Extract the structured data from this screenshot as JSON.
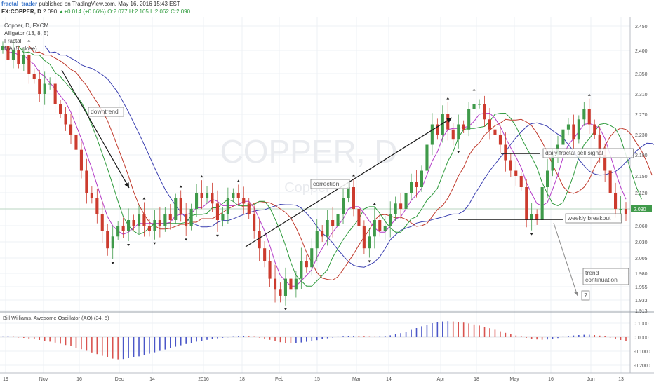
{
  "header": {
    "author": "fractal_trader",
    "published": "published on TradingView.com, May 16, 2016 15:43 EST",
    "symbol": "FX:COPPER, D",
    "last": "2.090",
    "change": "▲+0.014 (+0.66%)",
    "open": "O:2.077",
    "high": "H:2.105",
    "low": "L:2.062",
    "close": "C:2.090"
  },
  "indicators": {
    "series": "Copper, D, FXCM",
    "alligator": "Alligator (13, 8, 5)",
    "fractal": "Fractal",
    "ma": "MA (5, close)"
  },
  "watermark": {
    "main": "COPPER, D",
    "sub": "Copper"
  },
  "colors": {
    "up": "#3f9a4a",
    "down": "#cc3b2e",
    "jaw": "#3a3fb0",
    "teeth": "#c0392b",
    "lips": "#2e9a3c",
    "ma": "#b43cc8",
    "ao_up": "#4a56c8",
    "ao_down": "#d9534f",
    "price_label": "#3f9a4a",
    "annotation": "#666666"
  },
  "chart_data": [
    {
      "type": "candlestick",
      "title": "",
      "x_ticks": [
        "19",
        "Nov",
        "16",
        "Dec",
        "14",
        "2016",
        "18",
        "Feb",
        "15",
        "Mar",
        "14",
        "Apr",
        "18",
        "May",
        "16",
        "Jun",
        "13"
      ],
      "y_ticks": [
        "2.450",
        "2.400",
        "2.350",
        "2.310",
        "2.270",
        "2.230",
        "2.190",
        "2.150",
        "2.120",
        "2.090",
        "2.060",
        "2.030",
        "2.005",
        "1.980",
        "1.955",
        "1.933",
        "1.913"
      ],
      "ylim": [
        1.913,
        2.46
      ],
      "last_price": 2.09,
      "last_price_label": "2.090",
      "close": [
        2.41,
        2.38,
        2.4,
        2.37,
        2.39,
        2.35,
        2.34,
        2.31,
        2.33,
        2.33,
        2.29,
        2.27,
        2.25,
        2.23,
        2.2,
        2.16,
        2.12,
        2.11,
        2.08,
        2.05,
        2.02,
        2.04,
        2.06,
        2.05,
        2.07,
        2.06,
        2.08,
        2.06,
        2.05,
        2.07,
        2.06,
        2.08,
        2.07,
        2.11,
        2.08,
        2.06,
        2.09,
        2.12,
        2.11,
        2.12,
        2.1,
        2.07,
        2.08,
        2.11,
        2.12,
        2.11,
        2.1,
        2.08,
        2.05,
        2.02,
        2.0,
        1.97,
        1.95,
        1.94,
        1.97,
        1.95,
        1.97,
        2.0,
        1.99,
        2.02,
        2.05,
        2.04,
        2.07,
        2.06,
        2.08,
        2.11,
        2.13,
        2.09,
        2.06,
        2.02,
        2.04,
        2.07,
        2.05,
        2.06,
        2.08,
        2.1,
        2.09,
        2.12,
        2.14,
        2.13,
        2.16,
        2.21,
        2.25,
        2.23,
        2.27,
        2.24,
        2.22,
        2.25,
        2.24,
        2.28,
        2.29,
        2.29,
        2.26,
        2.24,
        2.23,
        2.21,
        2.18,
        2.16,
        2.15,
        2.13,
        2.07,
        2.08,
        2.07,
        2.13,
        2.16,
        2.19,
        2.21,
        2.24,
        2.25,
        2.22,
        2.26,
        2.28,
        2.25,
        2.23,
        2.19,
        2.16,
        2.12,
        2.09,
        2.09,
        2.08
      ],
      "series": [
        {
          "name": "Alligator Jaw (13)",
          "color": "#3a3fb0"
        },
        {
          "name": "Alligator Teeth (8)",
          "color": "#c0392b"
        },
        {
          "name": "Alligator Lips (5)",
          "color": "#2e9a3c"
        },
        {
          "name": "MA (5, close)",
          "color": "#b43cc8"
        }
      ],
      "annotations": [
        {
          "text": "downtrend",
          "kind": "label"
        },
        {
          "text": "correction",
          "kind": "label"
        },
        {
          "text": "daily fractal sell signal",
          "kind": "label"
        },
        {
          "text": "weekly breakout",
          "kind": "label"
        },
        {
          "text": "trend continuation",
          "kind": "label"
        },
        {
          "text": "?",
          "kind": "label"
        }
      ]
    },
    {
      "type": "bar",
      "title": "Bill Williams. Awesome Oscillator (AO) (34, 5)",
      "y_ticks": [
        "0.1000",
        "0.0000",
        "-0.1000",
        "-0.2000"
      ],
      "ylim": [
        -0.2,
        0.12
      ],
      "values": [
        0.001,
        0.003,
        0.002,
        -0.002,
        -0.005,
        -0.01,
        -0.015,
        -0.02,
        -0.026,
        -0.032,
        -0.039,
        -0.047,
        -0.056,
        -0.065,
        -0.075,
        -0.086,
        -0.097,
        -0.109,
        -0.121,
        -0.133,
        -0.145,
        -0.153,
        -0.158,
        -0.156,
        -0.15,
        -0.144,
        -0.137,
        -0.128,
        -0.118,
        -0.108,
        -0.098,
        -0.088,
        -0.078,
        -0.068,
        -0.058,
        -0.049,
        -0.04,
        -0.032,
        -0.025,
        -0.019,
        -0.013,
        -0.008,
        -0.004,
        -0.001,
        0.002,
        0.004,
        0.005,
        0.004,
        0.002,
        -0.003,
        -0.01,
        -0.019,
        -0.028,
        -0.036,
        -0.041,
        -0.044,
        -0.042,
        -0.038,
        -0.033,
        -0.027,
        -0.021,
        -0.014,
        -0.008,
        -0.003,
        0.001,
        0.004,
        0.006,
        0.007,
        0.006,
        0.004,
        0.002,
        0.001,
        0.003,
        0.007,
        0.013,
        0.02,
        0.029,
        0.04,
        0.052,
        0.065,
        0.078,
        0.09,
        0.1,
        0.108,
        0.112,
        0.114,
        0.112,
        0.108,
        0.104,
        0.098,
        0.091,
        0.083,
        0.074,
        0.064,
        0.053,
        0.042,
        0.031,
        0.021,
        0.012,
        0.004,
        -0.004,
        -0.011,
        -0.016,
        -0.018,
        -0.016,
        -0.012,
        -0.006,
        0.001,
        0.007,
        0.012,
        0.015,
        0.017,
        0.017,
        0.015,
        0.011,
        0.005,
        -0.003,
        -0.012,
        -0.02,
        -0.026
      ]
    }
  ]
}
